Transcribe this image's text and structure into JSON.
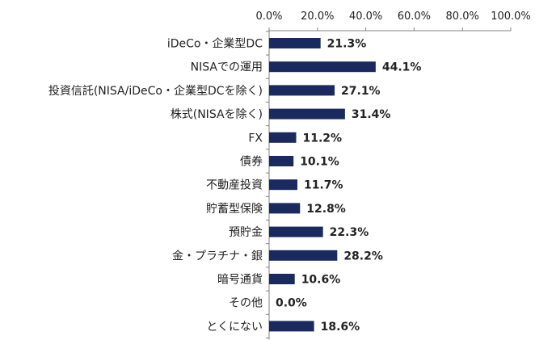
{
  "chart_data": {
    "type": "bar",
    "orientation": "horizontal",
    "categories": [
      "iDeCo・企業型DC",
      "NISAでの運用",
      "投資信託(NISA/iDeCo・企業型DCを除く)",
      "株式(NISAを除く)",
      "FX",
      "債券",
      "不動産投資",
      "貯蓄型保険",
      "預貯金",
      "金・プラチナ・銀",
      "暗号通貨",
      "その他",
      "とくにない"
    ],
    "values": [
      21.3,
      44.1,
      27.1,
      31.4,
      11.2,
      10.1,
      11.7,
      12.8,
      22.3,
      28.2,
      10.6,
      0.0,
      18.6
    ],
    "value_labels": [
      "21.3%",
      "44.1%",
      "27.1%",
      "31.4%",
      "11.2%",
      "10.1%",
      "11.7%",
      "12.8%",
      "22.3%",
      "28.2%",
      "10.6%",
      "0.0%",
      "18.6%"
    ],
    "xlim": [
      0,
      100
    ],
    "x_ticks": [
      0,
      20,
      40,
      60,
      80,
      100
    ],
    "x_tick_labels": [
      "0.0%",
      "20.0%",
      "40.0%",
      "60.0%",
      "80.0%",
      "100.0%"
    ],
    "axis_position": "top",
    "grid": false,
    "legend": false,
    "bar_color": "#1a2a5e",
    "axis_color": "#808080"
  }
}
